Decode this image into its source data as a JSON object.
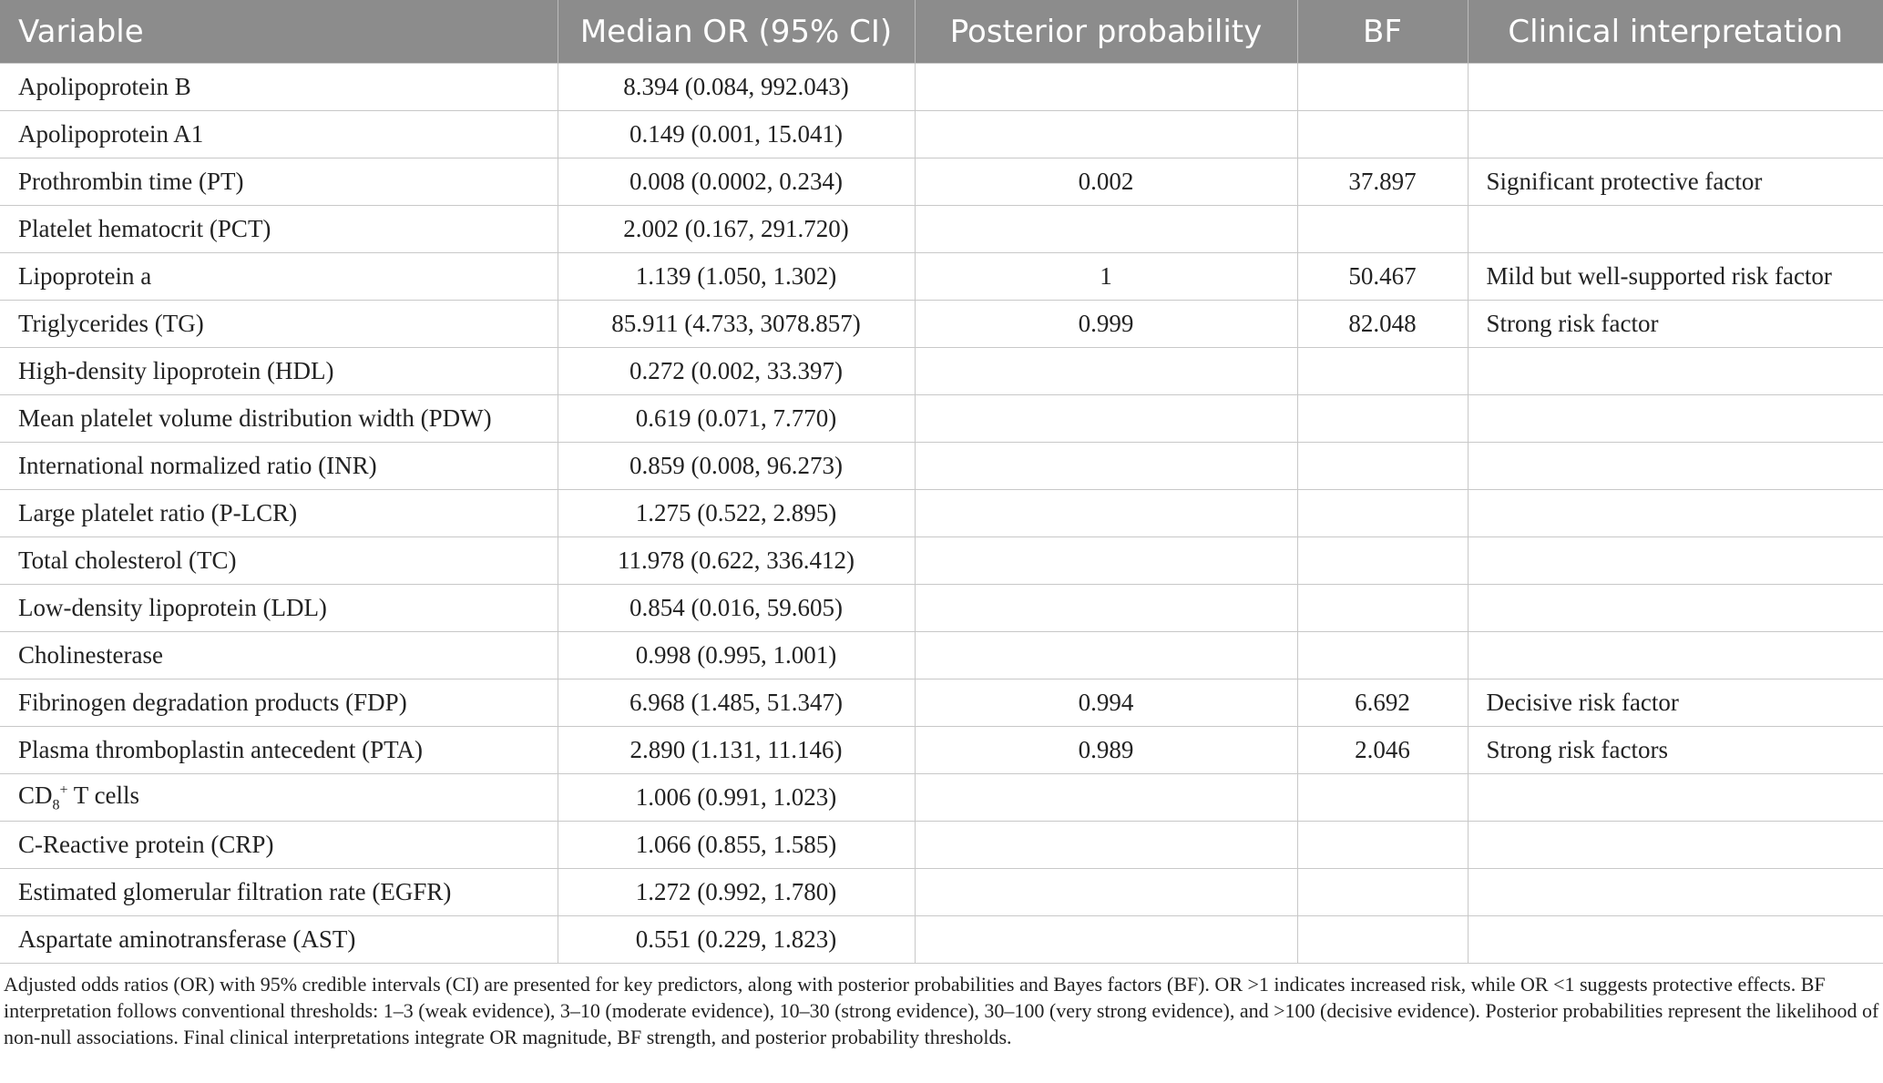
{
  "table": {
    "header": [
      "Variable",
      "Median OR (95% CI)",
      "Posterior probability",
      "BF",
      "Clinical interpretation"
    ],
    "rows": [
      [
        "Apolipoprotein B",
        "8.394 (0.084, 992.043)",
        null,
        null,
        null
      ],
      [
        "Apolipoprotein A1",
        "0.149 (0.001, 15.041)",
        null,
        null,
        null
      ],
      [
        "Prothrombin time (PT)",
        "0.008 (0.0002, 0.234)",
        "0.002",
        "37.897",
        "Significant protective factor"
      ],
      [
        "Platelet hematocrit (PCT)",
        "2.002 (0.167, 291.720)",
        null,
        null,
        null
      ],
      [
        "Lipoprotein a",
        "1.139 (1.050, 1.302)",
        "1",
        "50.467",
        "Mild but well-supported risk factor"
      ],
      [
        "Triglycerides (TG)",
        "85.911 (4.733, 3078.857)",
        "0.999",
        "82.048",
        "Strong risk factor"
      ],
      [
        "High-density lipoprotein (HDL)",
        "0.272 (0.002, 33.397)",
        null,
        null,
        null
      ],
      [
        "Mean platelet volume distribution width (PDW)",
        "0.619 (0.071, 7.770)",
        null,
        null,
        null
      ],
      [
        "International normalized ratio (INR)",
        "0.859 (0.008, 96.273)",
        null,
        null,
        null
      ],
      [
        "Large platelet ratio (P-LCR)",
        "1.275 (0.522, 2.895)",
        null,
        null,
        null
      ],
      [
        "Total cholesterol (TC)",
        "11.978 (0.622, 336.412)",
        null,
        null,
        null
      ],
      [
        "Low-density lipoprotein (LDL)",
        "0.854 (0.016, 59.605)",
        null,
        null,
        null
      ],
      [
        "Cholinesterase",
        "0.998 (0.995, 1.001)",
        null,
        null,
        null
      ],
      [
        "Fibrinogen degradation products (FDP)",
        "6.968 (1.485, 51.347)",
        "0.994",
        "6.692",
        "Decisive risk factor"
      ],
      [
        "Plasma thromboplastin antecedent (PTA)",
        "2.890 (1.131, 11.146)",
        "0.989",
        "2.046",
        "Strong risk factors"
      ],
      [
        {
          "base": "CD",
          "sub": "8",
          "sup": "+",
          "rest": " T cells"
        },
        "1.006 (0.991, 1.023)",
        null,
        null,
        null
      ],
      [
        "C-Reactive protein (CRP)",
        "1.066 (0.855, 1.585)",
        null,
        null,
        null
      ],
      [
        "Estimated glomerular filtration rate (EGFR)",
        "1.272 (0.992, 1.780)",
        null,
        null,
        null
      ],
      [
        "Aspartate aminotransferase (AST)",
        "0.551 (0.229, 1.823)",
        null,
        null,
        null
      ]
    ],
    "footnote": "Adjusted odds ratios (OR) with 95% credible intervals (CI) are presented for key predictors, along with posterior probabilities and Bayes factors (BF). OR >1 indicates increased risk, while OR <1 suggests protective effects. BF interpretation follows conventional thresholds: 1–3 (weak evidence), 3–10 (moderate evidence), 10–30 (strong evidence), 30–100 (very strong evidence), and >100 (decisive evidence). Posterior probabilities represent the likelihood of non-null associations. Final clinical interpretations integrate OR magnitude, BF strength, and posterior probability thresholds."
  }
}
